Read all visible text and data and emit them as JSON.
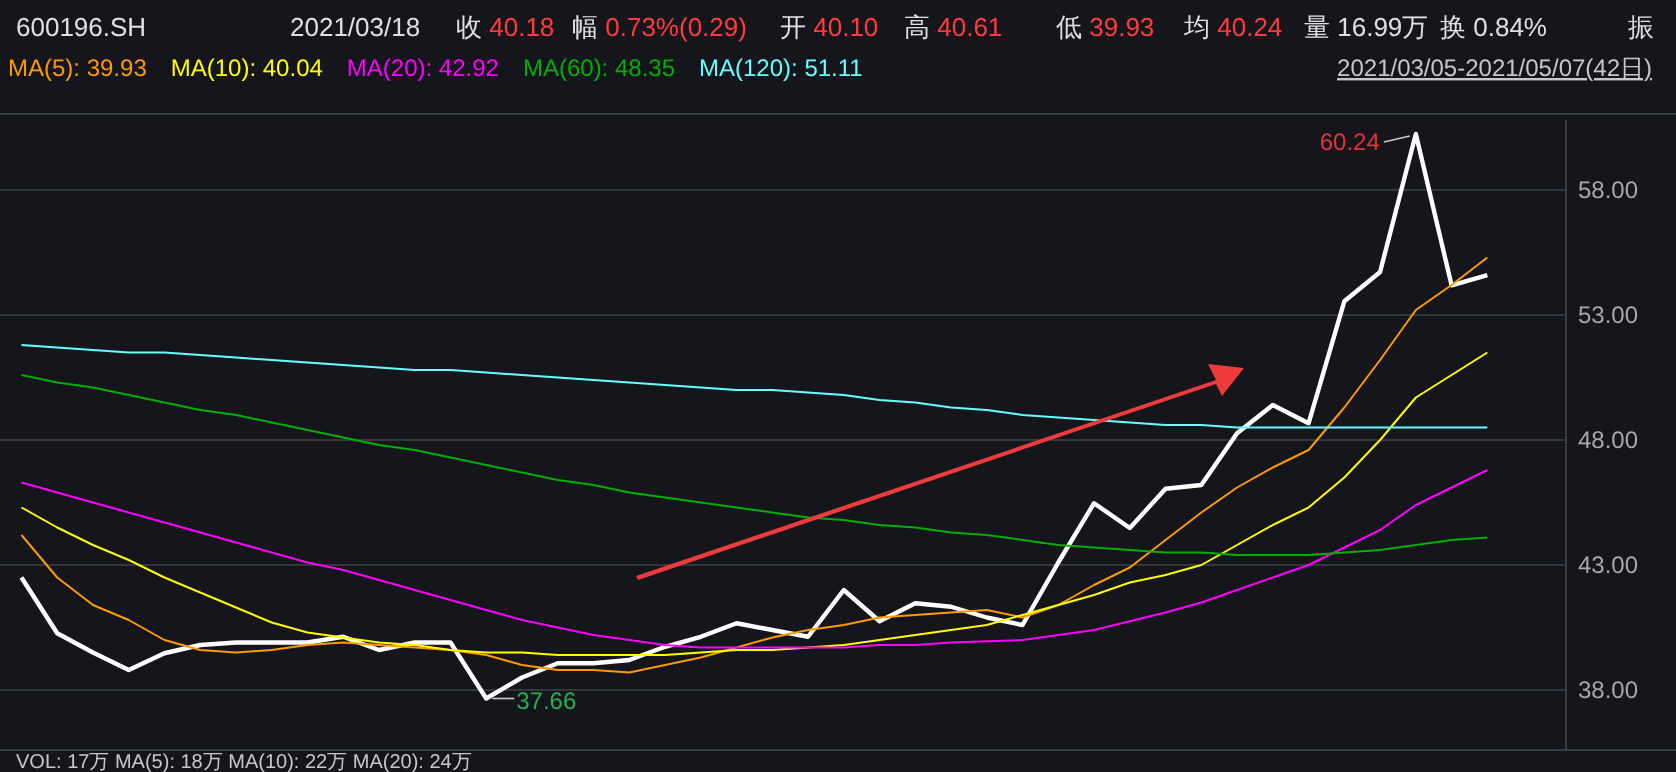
{
  "chart_data": {
    "type": "line",
    "title": "600196.SH",
    "subtitle": "2021/03/18",
    "categories": [
      null,
      null,
      null,
      null,
      null,
      null,
      null,
      null,
      null,
      null,
      null,
      null,
      null,
      null,
      null,
      null,
      null,
      null,
      null,
      null,
      null,
      null,
      null,
      null,
      null,
      null,
      null,
      null,
      null,
      null,
      null,
      null,
      null,
      null,
      null,
      null,
      null,
      null,
      null,
      null,
      null,
      null
    ],
    "series": [
      {
        "color": "#ffffff",
        "values": [
          42.5,
          40.27,
          39.5,
          38.8,
          39.47,
          39.8,
          39.9,
          39.9,
          39.9,
          40.13,
          39.6,
          39.9,
          39.9,
          37.66,
          38.5,
          39.07,
          39.07,
          39.2,
          39.73,
          40.13,
          40.67,
          40.4,
          40.13,
          42.0,
          40.75,
          41.47,
          41.33,
          40.9,
          40.6,
          43.1,
          45.47,
          44.48,
          46.05,
          46.2,
          48.27,
          49.4,
          48.67,
          53.55,
          54.72,
          60.24,
          54.19,
          54.59
        ]
      },
      {
        "name": "MA(5): 39.93",
        "color": "#ff9900",
        "values": [
          44.2,
          42.5,
          41.4,
          40.8,
          40.0,
          39.6,
          39.5,
          39.6,
          39.8,
          39.9,
          39.8,
          39.7,
          39.6,
          39.4,
          39.0,
          38.8,
          38.8,
          38.7,
          39.0,
          39.3,
          39.7,
          40.1,
          40.4,
          40.6,
          40.9,
          41.0,
          41.1,
          41.2,
          40.9,
          41.4,
          42.2,
          42.9,
          44.0,
          45.1,
          46.1,
          46.9,
          47.6,
          49.3,
          51.2,
          53.2,
          54.2,
          55.3
        ]
      },
      {
        "name": "MA(10): 40.04",
        "color": "#ffff00",
        "values": [
          45.3,
          44.5,
          43.8,
          43.2,
          42.5,
          41.9,
          41.3,
          40.7,
          40.3,
          40.1,
          39.9,
          39.8,
          39.6,
          39.5,
          39.5,
          39.4,
          39.4,
          39.4,
          39.4,
          39.5,
          39.6,
          39.6,
          39.7,
          39.8,
          40.0,
          40.2,
          40.4,
          40.6,
          41.0,
          41.4,
          41.8,
          42.3,
          42.6,
          43.0,
          43.8,
          44.6,
          45.3,
          46.5,
          48.0,
          49.7,
          50.6,
          51.5
        ]
      },
      {
        "name": "MA(20): 42.92",
        "color": "#ff00ff",
        "values": [
          46.3,
          45.9,
          45.5,
          45.1,
          44.7,
          44.3,
          43.9,
          43.5,
          43.1,
          42.8,
          42.4,
          42.0,
          41.6,
          41.2,
          40.8,
          40.5,
          40.2,
          40.0,
          39.8,
          39.7,
          39.7,
          39.7,
          39.7,
          39.7,
          39.8,
          39.8,
          39.9,
          39.95,
          40.0,
          40.2,
          40.4,
          40.75,
          41.1,
          41.5,
          42.0,
          42.5,
          43.0,
          43.7,
          44.4,
          45.4,
          46.1,
          46.8
        ]
      },
      {
        "name": "MA(60): 48.35",
        "color": "#00b000",
        "values": [
          50.6,
          50.3,
          50.1,
          49.8,
          49.5,
          49.2,
          49.0,
          48.7,
          48.4,
          48.1,
          47.8,
          47.6,
          47.3,
          47.0,
          46.7,
          46.4,
          46.2,
          45.9,
          45.7,
          45.5,
          45.3,
          45.1,
          44.9,
          44.8,
          44.6,
          44.5,
          44.3,
          44.2,
          44.0,
          43.8,
          43.7,
          43.6,
          43.5,
          43.5,
          43.4,
          43.4,
          43.4,
          43.5,
          43.6,
          43.8,
          44.0,
          44.1
        ]
      },
      {
        "name": "MA(120): 51.11",
        "color": "#66ffff",
        "values": [
          51.8,
          51.7,
          51.6,
          51.5,
          51.5,
          51.4,
          51.3,
          51.2,
          51.1,
          51.0,
          50.9,
          50.8,
          50.8,
          50.7,
          50.6,
          50.5,
          50.4,
          50.3,
          50.2,
          50.1,
          50.0,
          50.0,
          49.9,
          49.8,
          49.6,
          49.5,
          49.3,
          49.2,
          49.0,
          48.9,
          48.8,
          48.7,
          48.6,
          48.6,
          48.5,
          48.5,
          48.5,
          48.5,
          48.5,
          48.5,
          48.5,
          48.5
        ]
      }
    ],
    "ylim": [
      35.6,
      60.8
    ],
    "yticks": [
      {
        "value": 38,
        "label": "38.00"
      },
      {
        "value": 43,
        "label": "43.00"
      },
      {
        "value": 48,
        "label": "48.00"
      },
      {
        "value": 53,
        "label": "53.00"
      },
      {
        "value": 58,
        "label": "58.00"
      }
    ],
    "grid": "y",
    "legend": "top left",
    "marker": "none",
    "line_style": "solid",
    "annotations": [
      "收 40.18",
      "幅 0.73%(0.29)",
      "开 40.10",
      "高 40.61",
      "低 39.93",
      "均 40.24",
      "量 16.99万",
      "换 0.84%",
      "振",
      "2021/03/05-2021/05/07(42日)",
      "60.24",
      "37.66",
      "VOL: 17万 MA(5): 18万 MA(10): 22万 MA(20): 24万"
    ]
  }
}
